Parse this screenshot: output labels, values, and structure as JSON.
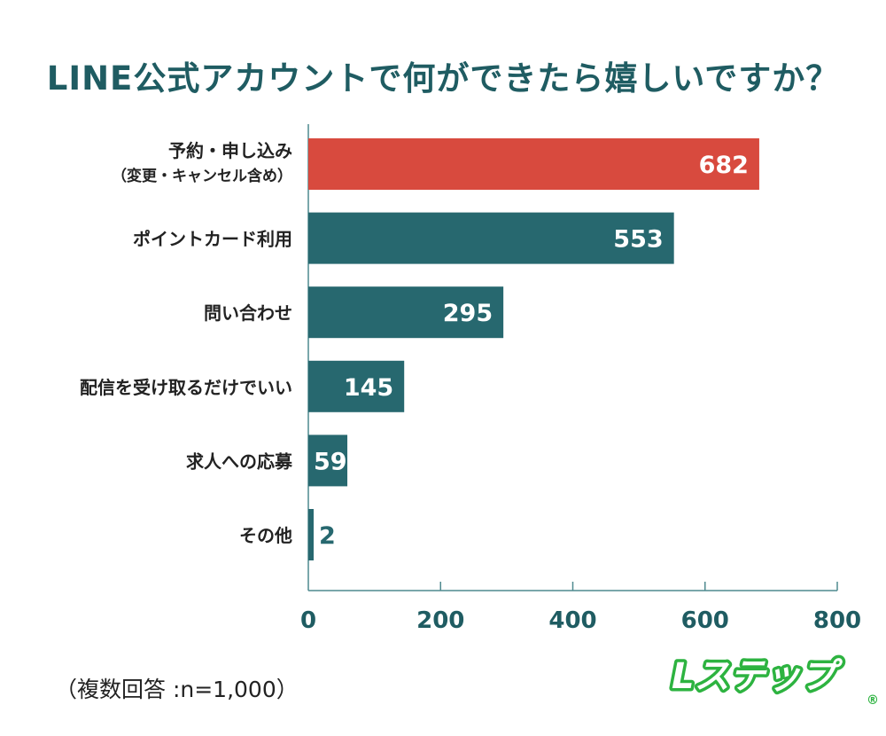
{
  "title": "LINE公式アカウントで何ができたら嬉しいですか？",
  "note": "（複数回答 :n=1,000）",
  "logo_text": "Lステップ",
  "colors": {
    "highlight": "#d84a3e",
    "bar": "#27686f",
    "text": "#1f5c62",
    "axis": "#4f8a8f",
    "logo": "#2db340"
  },
  "chart_data": {
    "type": "bar",
    "orientation": "horizontal",
    "categories": [
      [
        "予約・申し込み",
        "（変更・キャンセル含め）"
      ],
      [
        "ポイントカード利用"
      ],
      [
        "問い合わせ"
      ],
      [
        "配信を受け取るだけでいい"
      ],
      [
        "求人への応募"
      ],
      [
        "その他"
      ]
    ],
    "values": [
      682,
      553,
      295,
      145,
      59,
      2
    ],
    "highlight_index": 0,
    "xlim": [
      0,
      800
    ],
    "xticks": [
      0,
      200,
      400,
      600,
      800
    ],
    "grid": false,
    "data_labels": true
  }
}
